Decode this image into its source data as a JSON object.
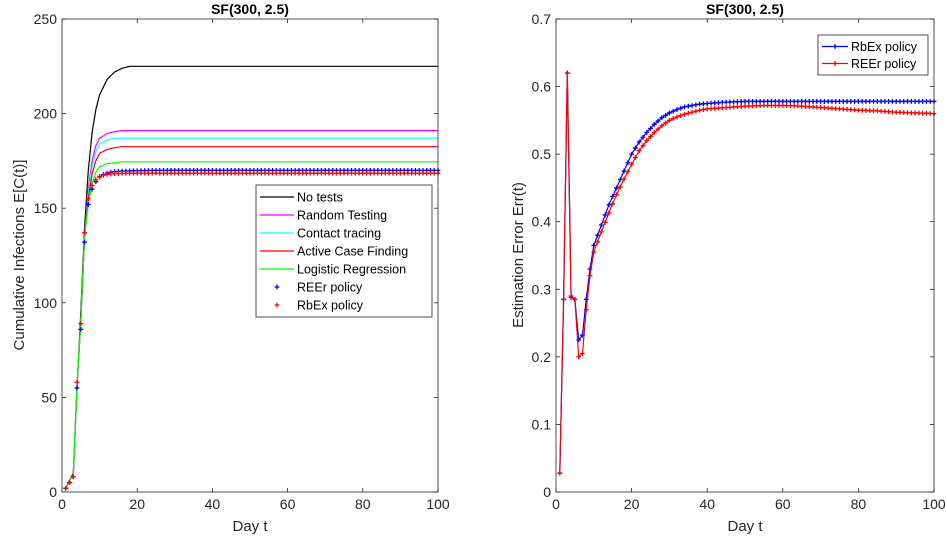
{
  "chart_data": [
    {
      "type": "line",
      "title": "SF(300, 2.5)",
      "xlabel": "Day t",
      "ylabel": "Cumulative Infections E[C(t)]",
      "xlim": [
        0,
        100
      ],
      "ylim": [
        0,
        250
      ],
      "xticks": [
        0,
        20,
        40,
        60,
        80,
        100
      ],
      "yticks": [
        0,
        50,
        100,
        150,
        200,
        250
      ],
      "legend_position": "center-right",
      "series": [
        {
          "name": "No tests",
          "color": "#000000",
          "style": "line",
          "x": [
            1,
            2,
            3,
            4,
            5,
            6,
            7,
            8,
            9,
            10,
            12,
            14,
            16,
            18,
            20,
            25,
            30,
            40,
            60,
            80,
            100
          ],
          "y": [
            2,
            6,
            10,
            55,
            95,
            140,
            170,
            190,
            202,
            210,
            218,
            222,
            224,
            225,
            225,
            225,
            225,
            225,
            225,
            225,
            225
          ]
        },
        {
          "name": "Random Testing",
          "color": "#ff00ff",
          "style": "line",
          "x": [
            1,
            2,
            3,
            4,
            5,
            6,
            7,
            8,
            9,
            10,
            12,
            14,
            16,
            20,
            30,
            40,
            60,
            80,
            100
          ],
          "y": [
            2,
            6,
            9,
            56,
            90,
            135,
            160,
            175,
            183,
            187,
            189.5,
            190.5,
            191,
            191,
            191,
            191,
            191,
            191,
            191
          ]
        },
        {
          "name": "Contact tracing",
          "color": "#00ffff",
          "style": "line",
          "x": [
            1,
            2,
            3,
            4,
            5,
            6,
            7,
            8,
            9,
            10,
            12,
            14,
            16,
            20,
            30,
            40,
            60,
            80,
            100
          ],
          "y": [
            2,
            6,
            9,
            56,
            90,
            135,
            158,
            172,
            180,
            184,
            186,
            187,
            187,
            187,
            187,
            187,
            187,
            187,
            187
          ]
        },
        {
          "name": "Active Case Finding",
          "color": "#ff0000",
          "style": "line",
          "x": [
            1,
            2,
            3,
            4,
            5,
            6,
            7,
            8,
            9,
            10,
            12,
            14,
            16,
            20,
            30,
            40,
            60,
            80,
            100
          ],
          "y": [
            2,
            6,
            9,
            56,
            90,
            135,
            155,
            168,
            175,
            179,
            181,
            182,
            182.5,
            182.5,
            182.5,
            182.5,
            182.5,
            182.5,
            182.5
          ]
        },
        {
          "name": "Logistic Regression",
          "color": "#00ff00",
          "style": "line",
          "x": [
            1,
            2,
            3,
            4,
            5,
            6,
            7,
            8,
            9,
            10,
            12,
            14,
            16,
            20,
            30,
            40,
            60,
            80,
            100
          ],
          "y": [
            2,
            6,
            9,
            56,
            90,
            135,
            152,
            163,
            169,
            172,
            173.5,
            174,
            174.5,
            174.5,
            174.5,
            174.5,
            174.5,
            174.5,
            174.5
          ]
        },
        {
          "name": "REEr policy",
          "color": "#0000ff",
          "style": "markers",
          "x": [
            1,
            2,
            3,
            4,
            5,
            6,
            7,
            8,
            9,
            10,
            11,
            12,
            13,
            14,
            15,
            16,
            18,
            20,
            25,
            30,
            40,
            50,
            60,
            70,
            80,
            90,
            100
          ],
          "y": [
            2,
            5,
            8,
            55,
            86,
            132,
            152,
            160,
            164,
            166.5,
            167.8,
            168.6,
            169,
            169.3,
            169.5,
            169.6,
            169.7,
            169.8,
            170,
            170,
            170,
            170,
            170,
            170,
            170,
            170,
            170
          ]
        },
        {
          "name": "RbEx policy",
          "color": "#ff0000",
          "style": "markers",
          "x": [
            1,
            2,
            3,
            4,
            5,
            6,
            7,
            8,
            9,
            10,
            11,
            12,
            13,
            14,
            15,
            16,
            18,
            20,
            25,
            30,
            40,
            50,
            60,
            70,
            80,
            90,
            100
          ],
          "y": [
            2,
            5,
            8,
            58,
            89,
            137,
            155,
            162,
            165,
            166.8,
            167.4,
            167.8,
            168,
            168.2,
            168.3,
            168.4,
            168.5,
            168.5,
            168.5,
            168.5,
            168.5,
            168.5,
            168.5,
            168.5,
            168.5,
            168.5,
            168.5
          ]
        }
      ]
    },
    {
      "type": "line",
      "title": "SF(300, 2.5)",
      "xlabel": "Day t",
      "ylabel": "Estimation Error Err(t)",
      "xlim": [
        0,
        100
      ],
      "ylim": [
        0,
        0.7
      ],
      "xticks": [
        0,
        20,
        40,
        60,
        80,
        100
      ],
      "yticks": [
        0,
        0.1,
        0.2,
        0.3,
        0.4,
        0.5,
        0.6,
        0.7
      ],
      "legend_position": "top-right",
      "series": [
        {
          "name": "RbEx policy",
          "color": "#0000ff",
          "style": "line+markers",
          "x": [
            1,
            2,
            3,
            4,
            5,
            6,
            7,
            8,
            9,
            10,
            12,
            14,
            16,
            18,
            20,
            22,
            24,
            26,
            28,
            30,
            32,
            34,
            36,
            38,
            40,
            45,
            50,
            55,
            60,
            65,
            70,
            75,
            80,
            85,
            90,
            95,
            100
          ],
          "y": [
            0.028,
            0.285,
            0.62,
            0.288,
            0.285,
            0.225,
            0.232,
            0.285,
            0.33,
            0.365,
            0.395,
            0.425,
            0.45,
            0.475,
            0.5,
            0.518,
            0.532,
            0.544,
            0.554,
            0.561,
            0.566,
            0.57,
            0.572,
            0.574,
            0.575,
            0.577,
            0.578,
            0.578,
            0.578,
            0.578,
            0.578,
            0.578,
            0.578,
            0.578,
            0.578,
            0.578,
            0.578
          ]
        },
        {
          "name": "REEr policy",
          "color": "#ff0000",
          "style": "line+markers",
          "x": [
            1,
            2,
            3,
            4,
            5,
            6,
            7,
            8,
            9,
            10,
            12,
            14,
            16,
            18,
            20,
            22,
            24,
            26,
            28,
            30,
            32,
            34,
            36,
            38,
            40,
            45,
            50,
            55,
            60,
            65,
            70,
            75,
            80,
            85,
            90,
            95,
            100
          ],
          "y": [
            0.028,
            0.285,
            0.62,
            0.29,
            0.285,
            0.2,
            0.205,
            0.27,
            0.32,
            0.355,
            0.385,
            0.413,
            0.44,
            0.463,
            0.485,
            0.505,
            0.52,
            0.532,
            0.542,
            0.55,
            0.555,
            0.559,
            0.562,
            0.565,
            0.567,
            0.569,
            0.571,
            0.572,
            0.572,
            0.571,
            0.569,
            0.567,
            0.565,
            0.564,
            0.562,
            0.561,
            0.56
          ]
        }
      ]
    }
  ]
}
